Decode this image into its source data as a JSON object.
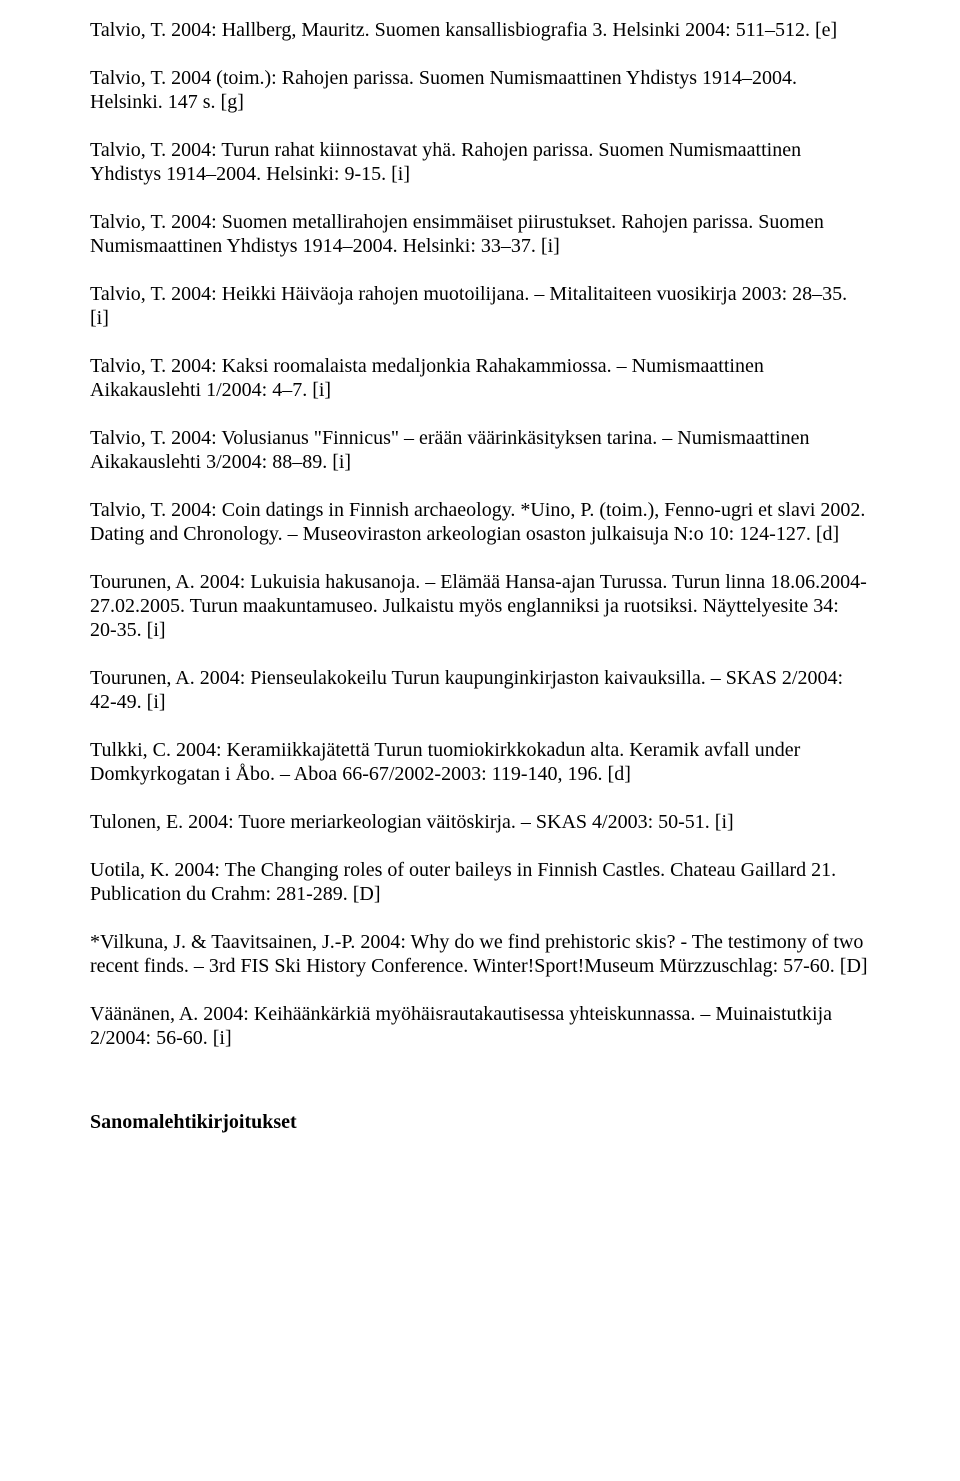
{
  "entries": [
    {
      "text": "Talvio, T. 2004: Hallberg, Mauritz. Suomen kansallisbiografia 3. Helsinki 2004: 511–512. [e]"
    },
    {
      "text": "Talvio, T. 2004 (toim.): Rahojen parissa. Suomen Numismaattinen Yhdistys 1914–2004. Helsinki. 147 s. [g]"
    },
    {
      "text": "Talvio, T. 2004: Turun rahat kiinnostavat yhä. Rahojen parissa. Suomen Numismaattinen Yhdistys 1914–2004. Helsinki: 9-15. [i]"
    },
    {
      "text": "Talvio, T. 2004: Suomen metallirahojen ensimmäiset piirustukset. Rahojen parissa. Suomen Numismaattinen Yhdistys 1914–2004. Helsinki: 33–37. [i]"
    },
    {
      "text": "Talvio, T. 2004: Heikki Häiväoja rahojen muotoilijana. – Mitalitaiteen vuosikirja 2003: 28–35. [i]"
    },
    {
      "text": "Talvio, T. 2004: Kaksi roomalaista medaljonkia Rahakammiossa. – Numismaattinen Aikakauslehti 1/2004: 4–7. [i]"
    },
    {
      "text": "Talvio, T. 2004: Volusianus \"Finnicus\" – erään väärinkäsityksen tarina. – Numismaattinen Aikakauslehti 3/2004:  88–89. [i]"
    },
    {
      "text": "Talvio, T. 2004: Coin datings in Finnish archaeology. *Uino, P. (toim.), Fenno-ugri et slavi 2002. Dating and Chronology. – Museoviraston arkeologian osaston julkaisuja N:o 10: 124-127. [d]"
    },
    {
      "text": "Tourunen, A. 2004: Lukuisia hakusanoja. – Elämää Hansa-ajan Turussa. Turun linna 18.06.2004-27.02.2005. Turun maakuntamuseo. Julkaistu myös englanniksi ja ruotsiksi. Näyttelyesite 34: 20-35. [i]"
    },
    {
      "text": "Tourunen, A. 2004: Pienseulakokeilu Turun kaupunginkirjaston kaivauksilla. – SKAS 2/2004: 42-49. [i]"
    },
    {
      "text": "Tulkki, C. 2004: Keramiikkajätettä Turun tuomiokirkkokadun alta. Keramik avfall under Domkyrkogatan i Åbo. – Aboa 66-67/2002-2003: 119-140, 196. [d]"
    },
    {
      "text": "Tulonen, E. 2004: Tuore meriarkeologian väitöskirja. – SKAS 4/2003: 50-51. [i]"
    },
    {
      "text": "Uotila, K. 2004: The Changing roles of outer baileys in Finnish Castles. Chateau Gaillard 21. Publication du Crahm: 281-289. [D]"
    },
    {
      "text": "*Vilkuna, J. & Taavitsainen, J.-P. 2004: Why do we find prehistoric skis? - The testimony of two recent finds. – 3rd FIS Ski History Conference. Winter!Sport!Museum Mürzzuschlag: 57-60. [D]"
    },
    {
      "text": "Väänänen, A. 2004: Keihäänkärkiä myöhäisrautakautisessa yhteiskunnassa. – Muinaistutkija 2/2004: 56-60. [i]"
    }
  ],
  "heading": "Sanomalehtikirjoitukset"
}
